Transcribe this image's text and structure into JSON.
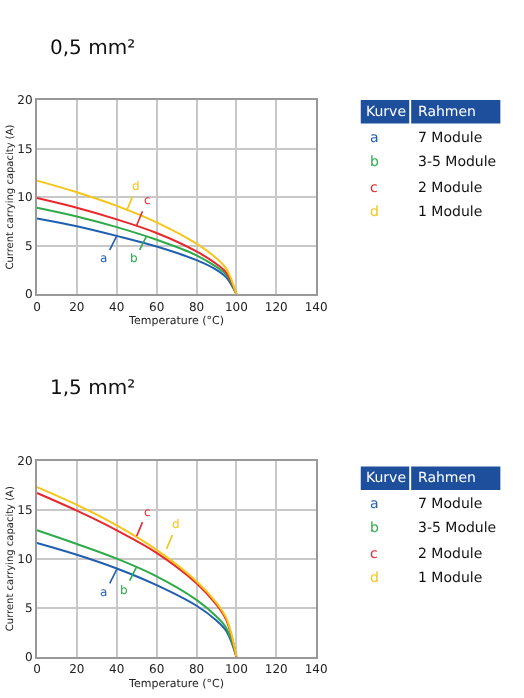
{
  "chart_data": [
    {
      "type": "line",
      "title": "0,5 mm²",
      "xlabel": "Temperature (°C)",
      "ylabel": "Current carrying capacity (A)",
      "x": [
        0,
        20,
        40,
        60,
        80,
        90,
        95,
        100
      ],
      "series": [
        {
          "name": "7 Module",
          "color": "#1f5fb0",
          "values": [
            7.8,
            7.0,
            6.0,
            4.9,
            3.5,
            2.5,
            1.7,
            0
          ]
        },
        {
          "name": "3-5 Module",
          "color": "#2eaa4a",
          "values": [
            8.9,
            8.0,
            6.9,
            5.6,
            4.0,
            2.8,
            2.0,
            0
          ]
        },
        {
          "name": "2 Module",
          "color": "#e8282d",
          "values": [
            9.9,
            8.9,
            7.7,
            6.3,
            4.4,
            3.1,
            2.2,
            0
          ]
        },
        {
          "name": "1 Module",
          "color": "#f5c518",
          "values": [
            11.7,
            10.5,
            9.1,
            7.4,
            5.2,
            3.7,
            2.6,
            0
          ]
        }
      ],
      "annotations": [
        {
          "text": "a",
          "x": 40,
          "y": 6.0
        },
        {
          "text": "b",
          "x": 55,
          "y": 6.0
        },
        {
          "text": "c",
          "x": 50,
          "y": 7.1
        },
        {
          "text": "d",
          "x": 45,
          "y": 8.6
        },
        "Kurve",
        "Rahmen"
      ],
      "xlim": [
        0,
        140
      ],
      "xticks": [
        0,
        20,
        40,
        60,
        80,
        100,
        120,
        140
      ],
      "ylim": [
        0,
        20
      ],
      "yticks": [
        0,
        5,
        10,
        15,
        20
      ],
      "grid": true,
      "legend": "right",
      "marker": "none",
      "line_style": "solid"
    },
    {
      "type": "line",
      "title": "1,5 mm²",
      "xlabel": "Temperature (°C)",
      "ylabel": "Current carrying capacity (A)",
      "x": [
        0,
        20,
        40,
        60,
        80,
        90,
        95,
        100
      ],
      "series": [
        {
          "name": "7 Module",
          "color": "#1f5fb0",
          "values": [
            11.6,
            10.4,
            9.0,
            7.3,
            5.2,
            3.7,
            2.6,
            0
          ]
        },
        {
          "name": "3-5 Module",
          "color": "#2eaa4a",
          "values": [
            12.9,
            11.5,
            10.0,
            8.2,
            5.8,
            4.1,
            2.9,
            0
          ]
        },
        {
          "name": "2 Module",
          "color": "#e8282d",
          "values": [
            16.7,
            14.9,
            12.9,
            10.6,
            7.5,
            5.3,
            3.7,
            0
          ]
        },
        {
          "name": "1 Module",
          "color": "#f5c518",
          "values": [
            17.3,
            15.5,
            13.4,
            10.9,
            7.7,
            5.5,
            3.9,
            0
          ]
        }
      ],
      "annotations": [
        {
          "text": "a",
          "x": 40,
          "y": 8.9
        },
        {
          "text": "b",
          "x": 50,
          "y": 9.2
        },
        {
          "text": "c",
          "x": 50,
          "y": 12.3
        },
        {
          "text": "d",
          "x": 65,
          "y": 11.0
        },
        "Kurve",
        "Rahmen"
      ],
      "xlim": [
        0,
        140
      ],
      "xticks": [
        0,
        20,
        40,
        60,
        80,
        100,
        120,
        140
      ],
      "ylim": [
        0,
        20
      ],
      "yticks": [
        0,
        5,
        10,
        15,
        20
      ],
      "grid": true,
      "legend": "right",
      "marker": "none",
      "line_style": "solid"
    }
  ]
}
